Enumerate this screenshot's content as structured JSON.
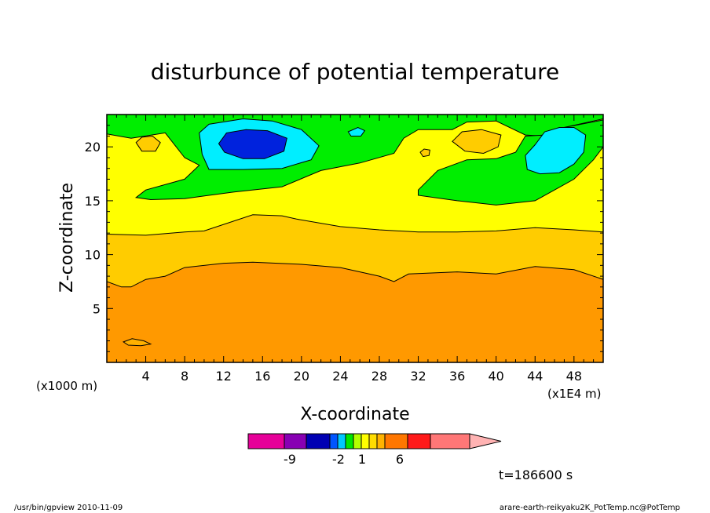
{
  "chart_data": {
    "type": "contour",
    "title": "disturbunce of potential temperature",
    "xlabel": "X-coordinate",
    "ylabel": "Z-coordinate",
    "x_unit_left": "(x1000 m)",
    "x_unit_right": "(x1E4 m)",
    "xlim": [
      0,
      51
    ],
    "ylim": [
      0,
      23
    ],
    "x_ticks": [
      4,
      8,
      12,
      16,
      20,
      24,
      28,
      32,
      36,
      40,
      44,
      48
    ],
    "y_ticks": [
      5,
      10,
      15,
      20
    ],
    "grid": false,
    "colorbar": {
      "placement": "bottom",
      "labels": [
        "-9",
        "-2",
        "1",
        "6"
      ],
      "colors": [
        "#e60099",
        "#8800b3",
        "#0000b3",
        "#0055ff",
        "#00c8ff",
        "#00e600",
        "#b3ff00",
        "#ffff00",
        "#ffdd00",
        "#ffb300",
        "#ff7700",
        "#ff1a1a",
        "#ff7777",
        "#ffb3b3"
      ]
    },
    "annotation": "t=186600 s",
    "levels": [
      {
        "name": "base",
        "color": "#ff9900",
        "boundary": [
          [
            0,
            0
          ],
          [
            51,
            0
          ],
          [
            51,
            23
          ],
          [
            0,
            23
          ]
        ]
      },
      {
        "name": "contour-8",
        "color": "#ffcc00",
        "boundary": [
          [
            0,
            7.5
          ],
          [
            1.5,
            7
          ],
          [
            2.5,
            7
          ],
          [
            4,
            7.7
          ],
          [
            6,
            8
          ],
          [
            8,
            8.8
          ],
          [
            12,
            9.2
          ],
          [
            15,
            9.3
          ],
          [
            20,
            9.1
          ],
          [
            24,
            8.8
          ],
          [
            28,
            8
          ],
          [
            29.5,
            7.5
          ],
          [
            31,
            8.2
          ],
          [
            36,
            8.4
          ],
          [
            40,
            8.2
          ],
          [
            44,
            8.9
          ],
          [
            48,
            8.6
          ],
          [
            51,
            7.7
          ],
          [
            51,
            23
          ],
          [
            0,
            23
          ]
        ]
      },
      {
        "name": "contour-12",
        "color": "#ffff00",
        "boundary": [
          [
            0,
            11.9
          ],
          [
            4,
            11.8
          ],
          [
            8,
            12.1
          ],
          [
            10,
            12.2
          ],
          [
            12,
            12.8
          ],
          [
            15,
            13.7
          ],
          [
            18,
            13.6
          ],
          [
            19.5,
            13.3
          ],
          [
            24,
            12.6
          ],
          [
            28,
            12.3
          ],
          [
            32,
            12.1
          ],
          [
            36,
            12.1
          ],
          [
            40,
            12.2
          ],
          [
            44,
            12.5
          ],
          [
            48,
            12.3
          ],
          [
            51,
            12.1
          ],
          [
            51,
            23
          ],
          [
            0,
            23
          ]
        ]
      },
      {
        "name": "green-main",
        "color": "#00ee00",
        "boundary": [
          [
            0,
            23
          ],
          [
            0,
            21.2
          ],
          [
            2.5,
            20.8
          ],
          [
            6,
            21.3
          ],
          [
            8,
            19
          ],
          [
            9.5,
            18.3
          ],
          [
            8,
            17
          ],
          [
            4,
            16
          ],
          [
            3,
            15.3
          ],
          [
            4.5,
            15.1
          ],
          [
            8,
            15.2
          ],
          [
            13,
            15.8
          ],
          [
            18,
            16.3
          ],
          [
            22,
            17.8
          ],
          [
            26,
            18.5
          ],
          [
            29.5,
            19.4
          ],
          [
            30.5,
            20.8
          ],
          [
            32,
            21.6
          ],
          [
            35.5,
            21.6
          ],
          [
            37,
            22.3
          ],
          [
            40,
            22.4
          ],
          [
            43,
            21.1
          ],
          [
            45,
            21
          ],
          [
            47,
            21.8
          ],
          [
            51,
            22.6
          ],
          [
            51,
            23
          ]
        ]
      },
      {
        "name": "green-right",
        "color": "#00ee00",
        "boundary": [
          [
            32,
            16
          ],
          [
            34,
            17.8
          ],
          [
            37,
            18.8
          ],
          [
            40,
            18.9
          ],
          [
            42,
            19.5
          ],
          [
            43,
            21
          ],
          [
            45,
            21.1
          ],
          [
            47,
            21.8
          ],
          [
            51,
            22.5
          ],
          [
            51,
            20
          ],
          [
            50,
            18.8
          ],
          [
            48,
            17
          ],
          [
            46,
            16
          ],
          [
            44,
            15
          ],
          [
            40,
            14.6
          ],
          [
            36,
            15
          ],
          [
            32,
            15.5
          ]
        ]
      },
      {
        "name": "orange-blob-left",
        "color": "#ffcc00",
        "boundary": [
          [
            3,
            20.4
          ],
          [
            3.6,
            20.9
          ],
          [
            4.7,
            21
          ],
          [
            5.5,
            20.4
          ],
          [
            5,
            19.6
          ],
          [
            3.6,
            19.6
          ]
        ]
      },
      {
        "name": "orange-blob-right",
        "color": "#ffcc00",
        "boundary": [
          [
            35.5,
            20.5
          ],
          [
            36.5,
            21.4
          ],
          [
            38.5,
            21.6
          ],
          [
            40.5,
            21.1
          ],
          [
            40.2,
            20
          ],
          [
            38.7,
            19.4
          ],
          [
            36.8,
            19.6
          ]
        ]
      },
      {
        "name": "orange-dot",
        "color": "#ffcc00",
        "boundary": [
          [
            32.2,
            19.5
          ],
          [
            32.6,
            19.8
          ],
          [
            33.2,
            19.7
          ],
          [
            33.1,
            19.2
          ],
          [
            32.5,
            19.1
          ]
        ]
      },
      {
        "name": "cyan-left",
        "color": "#00eeff",
        "boundary": [
          [
            9.5,
            21.3
          ],
          [
            10.5,
            22.1
          ],
          [
            14,
            22.6
          ],
          [
            17,
            22.4
          ],
          [
            20,
            21.6
          ],
          [
            21.8,
            20.1
          ],
          [
            21,
            18.8
          ],
          [
            18,
            18
          ],
          [
            14,
            17.9
          ],
          [
            10.5,
            17.9
          ],
          [
            9.8,
            19.3
          ]
        ]
      },
      {
        "name": "cyan-small",
        "color": "#00eeff",
        "boundary": [
          [
            24.8,
            21.4
          ],
          [
            25.8,
            21.8
          ],
          [
            26.5,
            21.5
          ],
          [
            26.1,
            21
          ],
          [
            25.1,
            21
          ]
        ]
      },
      {
        "name": "cyan-right",
        "color": "#00eeff",
        "boundary": [
          [
            43,
            19.2
          ],
          [
            44,
            20.2
          ],
          [
            45,
            21.4
          ],
          [
            46.5,
            21.8
          ],
          [
            48,
            21.8
          ],
          [
            49.2,
            21.1
          ],
          [
            49,
            19.5
          ],
          [
            48,
            18.4
          ],
          [
            46.5,
            17.6
          ],
          [
            44.5,
            17.5
          ],
          [
            43.2,
            17.9
          ]
        ]
      },
      {
        "name": "blue-core",
        "color": "#0022dd",
        "boundary": [
          [
            11.5,
            20.3
          ],
          [
            12.3,
            21.3
          ],
          [
            14.3,
            21.6
          ],
          [
            16.5,
            21.5
          ],
          [
            18.5,
            20.8
          ],
          [
            18.2,
            19.6
          ],
          [
            16.2,
            18.9
          ],
          [
            14,
            18.9
          ],
          [
            12.1,
            19.5
          ]
        ]
      },
      {
        "name": "orange-small-bottom",
        "color": "#ffb000",
        "boundary": [
          [
            1.7,
            1.9
          ],
          [
            2.6,
            2.2
          ],
          [
            3.8,
            2
          ],
          [
            4.5,
            1.7
          ],
          [
            3.5,
            1.55
          ],
          [
            2.2,
            1.6
          ]
        ]
      }
    ]
  },
  "footer": {
    "left": "/usr/bin/gpview   2010-11-09",
    "right": "arare-earth-reikyaku2K_PotTemp.nc@PotTemp"
  }
}
